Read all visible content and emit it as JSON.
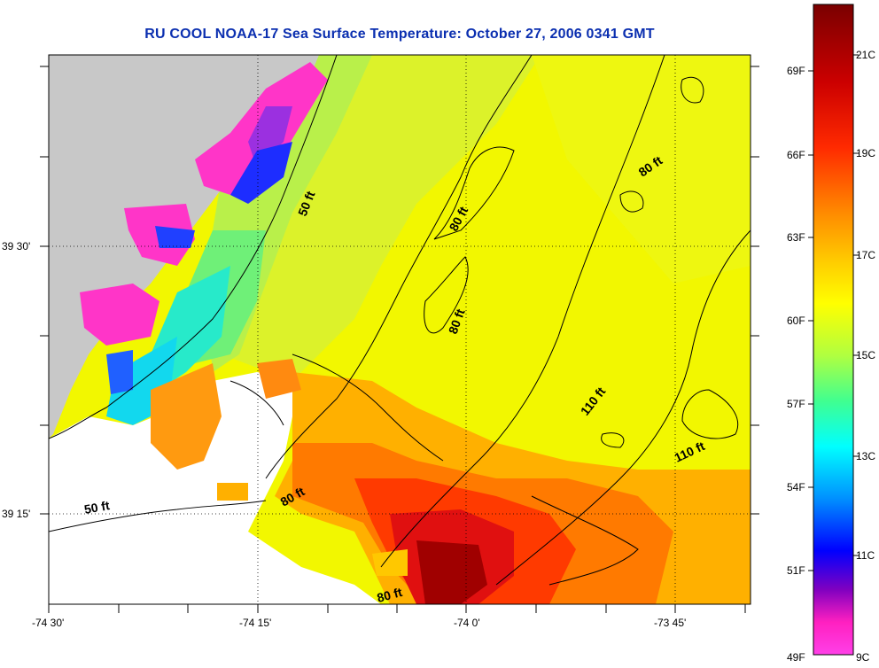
{
  "title": "RU COOL  NOAA-17  Sea Surface Temperature:  October 27, 2006 0341 GMT",
  "map": {
    "latitude_labels": [
      "39 30'",
      "39 15'"
    ],
    "longitude_labels": [
      "-74 30'",
      "-74 15'",
      "-74 0'",
      "-73 45'"
    ],
    "contour_labels": [
      "50 ft",
      "80 ft",
      "80 ft",
      "80 ft",
      "110 ft",
      "110 ft",
      "50 ft",
      "80 ft",
      "80 ft"
    ],
    "land_color": "#c8c8c8",
    "missing_data_color": "#ffffff"
  },
  "colorbar": {
    "fahrenheit_labels": [
      "69F",
      "66F",
      "63F",
      "60F",
      "57F",
      "54F",
      "51F",
      "49F"
    ],
    "celsius_labels": [
      "21C",
      "19C",
      "17C",
      "15C",
      "13C",
      "11C",
      "9C"
    ],
    "colors_top_to_bottom": [
      "#7a0000",
      "#c80000",
      "#ff2000",
      "#ff7a00",
      "#ffc800",
      "#ffff00",
      "#c8ff50",
      "#50ff90",
      "#00ffff",
      "#0090ff",
      "#0000ff",
      "#8000c0",
      "#ff20c0",
      "#ff40e0"
    ]
  }
}
